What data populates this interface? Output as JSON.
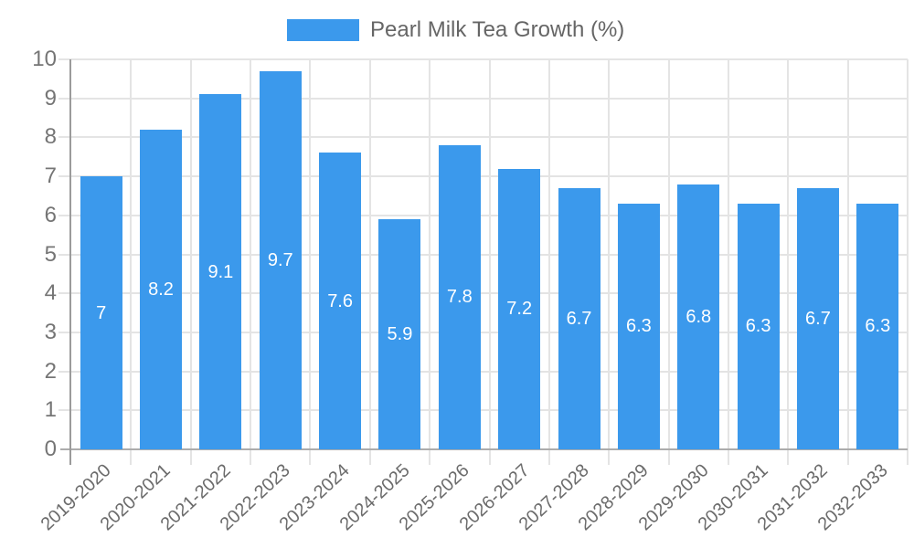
{
  "legend": {
    "label": "Pearl Milk Tea Growth (%)"
  },
  "colors": {
    "bar": "#3B99EC",
    "grid": "#E4E4E4",
    "x_axis": "#ACACAC",
    "y_axis": "#9B9B9B",
    "y_tick_label": "#757575",
    "x_tick_label": "#6B6B6B",
    "value_label": "#FFFFFF",
    "legend_text": "#666666"
  },
  "chart_data": {
    "type": "bar",
    "title": "",
    "legend_position": "top",
    "grid": true,
    "categories": [
      "2019-2020",
      "2020-2021",
      "2021-2022",
      "2022-2023",
      "2023-2024",
      "2024-2025",
      "2025-2026",
      "2026-2027",
      "2027-2028",
      "2028-2029",
      "2029-2030",
      "2030-2031",
      "2031-2032",
      "2032-2033"
    ],
    "series": [
      {
        "name": "Pearl Milk Tea Growth (%)",
        "values": [
          7,
          8.2,
          9.1,
          9.7,
          7.6,
          5.9,
          7.8,
          7.2,
          6.7,
          6.3,
          6.8,
          6.3,
          6.7,
          6.3
        ]
      }
    ],
    "value_labels": [
      "7",
      "8.2",
      "9.1",
      "9.7",
      "7.6",
      "5.9",
      "7.8",
      "7.2",
      "6.7",
      "6.3",
      "6.8",
      "6.3",
      "6.7",
      "6.3"
    ],
    "xlabel": "",
    "ylabel": "",
    "ylim": [
      0,
      10
    ],
    "yticks": [
      0,
      1,
      2,
      3,
      4,
      5,
      6,
      7,
      8,
      9,
      10
    ]
  }
}
